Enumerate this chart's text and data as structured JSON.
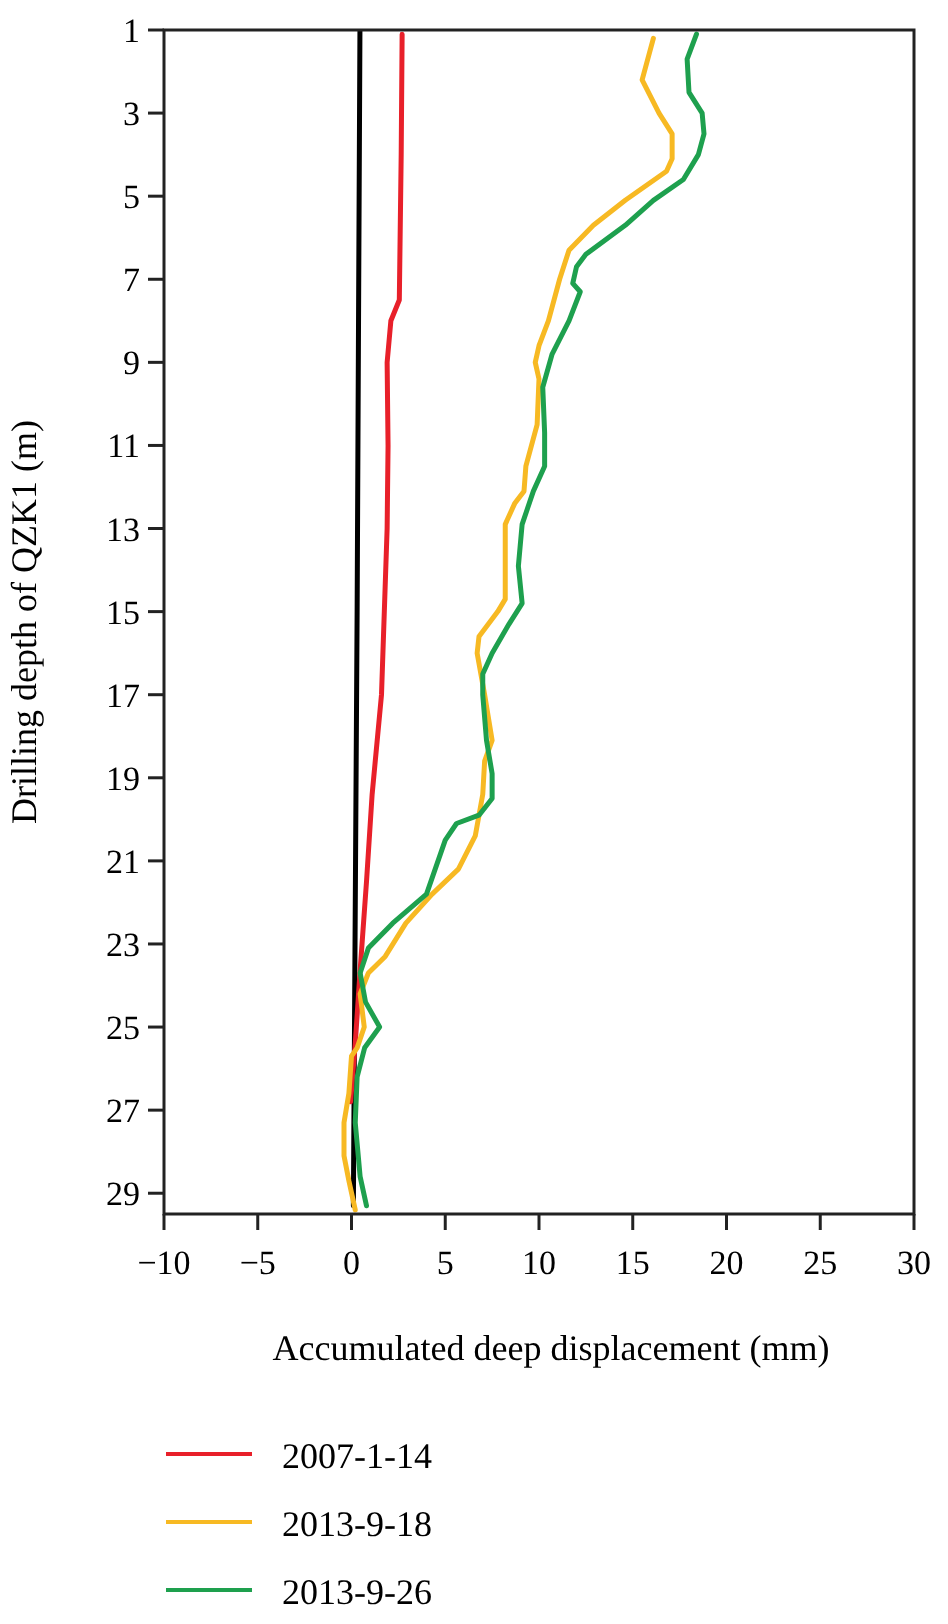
{
  "chart_data": {
    "type": "line",
    "xlabel": "Accumulated deep displacement (mm)",
    "ylabel": "Drilling depth of QZK1 (m)",
    "xlim": [
      -10,
      30
    ],
    "xticks": [
      -10,
      -5,
      0,
      5,
      10,
      15,
      20,
      25,
      30
    ],
    "ylim": [
      29.5,
      1
    ],
    "yticks": [
      1,
      3,
      5,
      7,
      9,
      11,
      13,
      15,
      17,
      19,
      21,
      23,
      25,
      27,
      29
    ],
    "legend": "bottom",
    "series": [
      {
        "color": "#000000",
        "x": [
          0.45,
          0.3,
          0.1
        ],
        "values": [
          1,
          15,
          29.3
        ]
      },
      {
        "name": "2007-1-14",
        "color": "#e8202a",
        "x": [
          2.7,
          2.65,
          2.55,
          2.1,
          1.9,
          1.95,
          1.9,
          1.75,
          1.6,
          1.1,
          0.8,
          0.45,
          0.2,
          -0.05
        ],
        "values": [
          1.1,
          4,
          7.5,
          8,
          9,
          11,
          13,
          15,
          17,
          19.4,
          21.5,
          23.7,
          25.4,
          26.8
        ]
      },
      {
        "name": "2013-9-18",
        "color": "#f7b923",
        "x": [
          16.1,
          15.5,
          16.4,
          17.1,
          17.1,
          16.8,
          14.6,
          12.9,
          11.6,
          11.1,
          10.5,
          10,
          9.8,
          10,
          9.9,
          9.3,
          9.2,
          8.7,
          8.2,
          8.2,
          8.2,
          7.8,
          6.8,
          6.7,
          7.1,
          7.5,
          7.1,
          7,
          6.6,
          5.7,
          4.3,
          2.9,
          1.8,
          0.9,
          0.46,
          0.68,
          0.3,
          0,
          -0.14,
          -0.4,
          -0.4,
          -0.14,
          0.2
        ],
        "values": [
          1.2,
          2.2,
          3,
          3.5,
          4.1,
          4.4,
          5.1,
          5.7,
          6.3,
          7,
          8,
          8.6,
          9,
          9.4,
          10.5,
          11.5,
          12.1,
          12.4,
          12.9,
          13.6,
          14.7,
          15,
          15.6,
          16,
          17,
          18.1,
          18.6,
          19.4,
          20.4,
          21.2,
          21.8,
          22.5,
          23.3,
          23.7,
          24.2,
          25,
          25.5,
          25.7,
          26.6,
          27.3,
          28.1,
          28.7,
          29.4
        ]
      },
      {
        "name": "2013-9-26",
        "color": "#1ea04e",
        "x": [
          18.4,
          17.9,
          18,
          18.7,
          18.8,
          18.5,
          17.7,
          16.1,
          14.6,
          12.5,
          12,
          11.8,
          12.2,
          11.6,
          10.7,
          10.2,
          10.3,
          10.3,
          9.7,
          9.1,
          8.9,
          9.1,
          8.4,
          7.5,
          7,
          7,
          7.2,
          7.5,
          7.5,
          6.8,
          5.6,
          5,
          4,
          2.2,
          0.9,
          0.46,
          0.75,
          1.5,
          0.7,
          0.3,
          0.2,
          0.46,
          0.8
        ],
        "values": [
          1.1,
          1.7,
          2.5,
          3,
          3.5,
          4,
          4.6,
          5.1,
          5.7,
          6.4,
          6.7,
          7.1,
          7.3,
          8,
          8.8,
          9.6,
          10.7,
          11.5,
          12.1,
          12.9,
          13.9,
          14.8,
          15.3,
          16,
          16.5,
          17,
          18.1,
          18.9,
          19.5,
          19.9,
          20.1,
          20.5,
          21.8,
          22.5,
          23.1,
          23.7,
          24.4,
          25,
          25.5,
          26.2,
          27.3,
          28.6,
          29.3
        ]
      }
    ]
  }
}
